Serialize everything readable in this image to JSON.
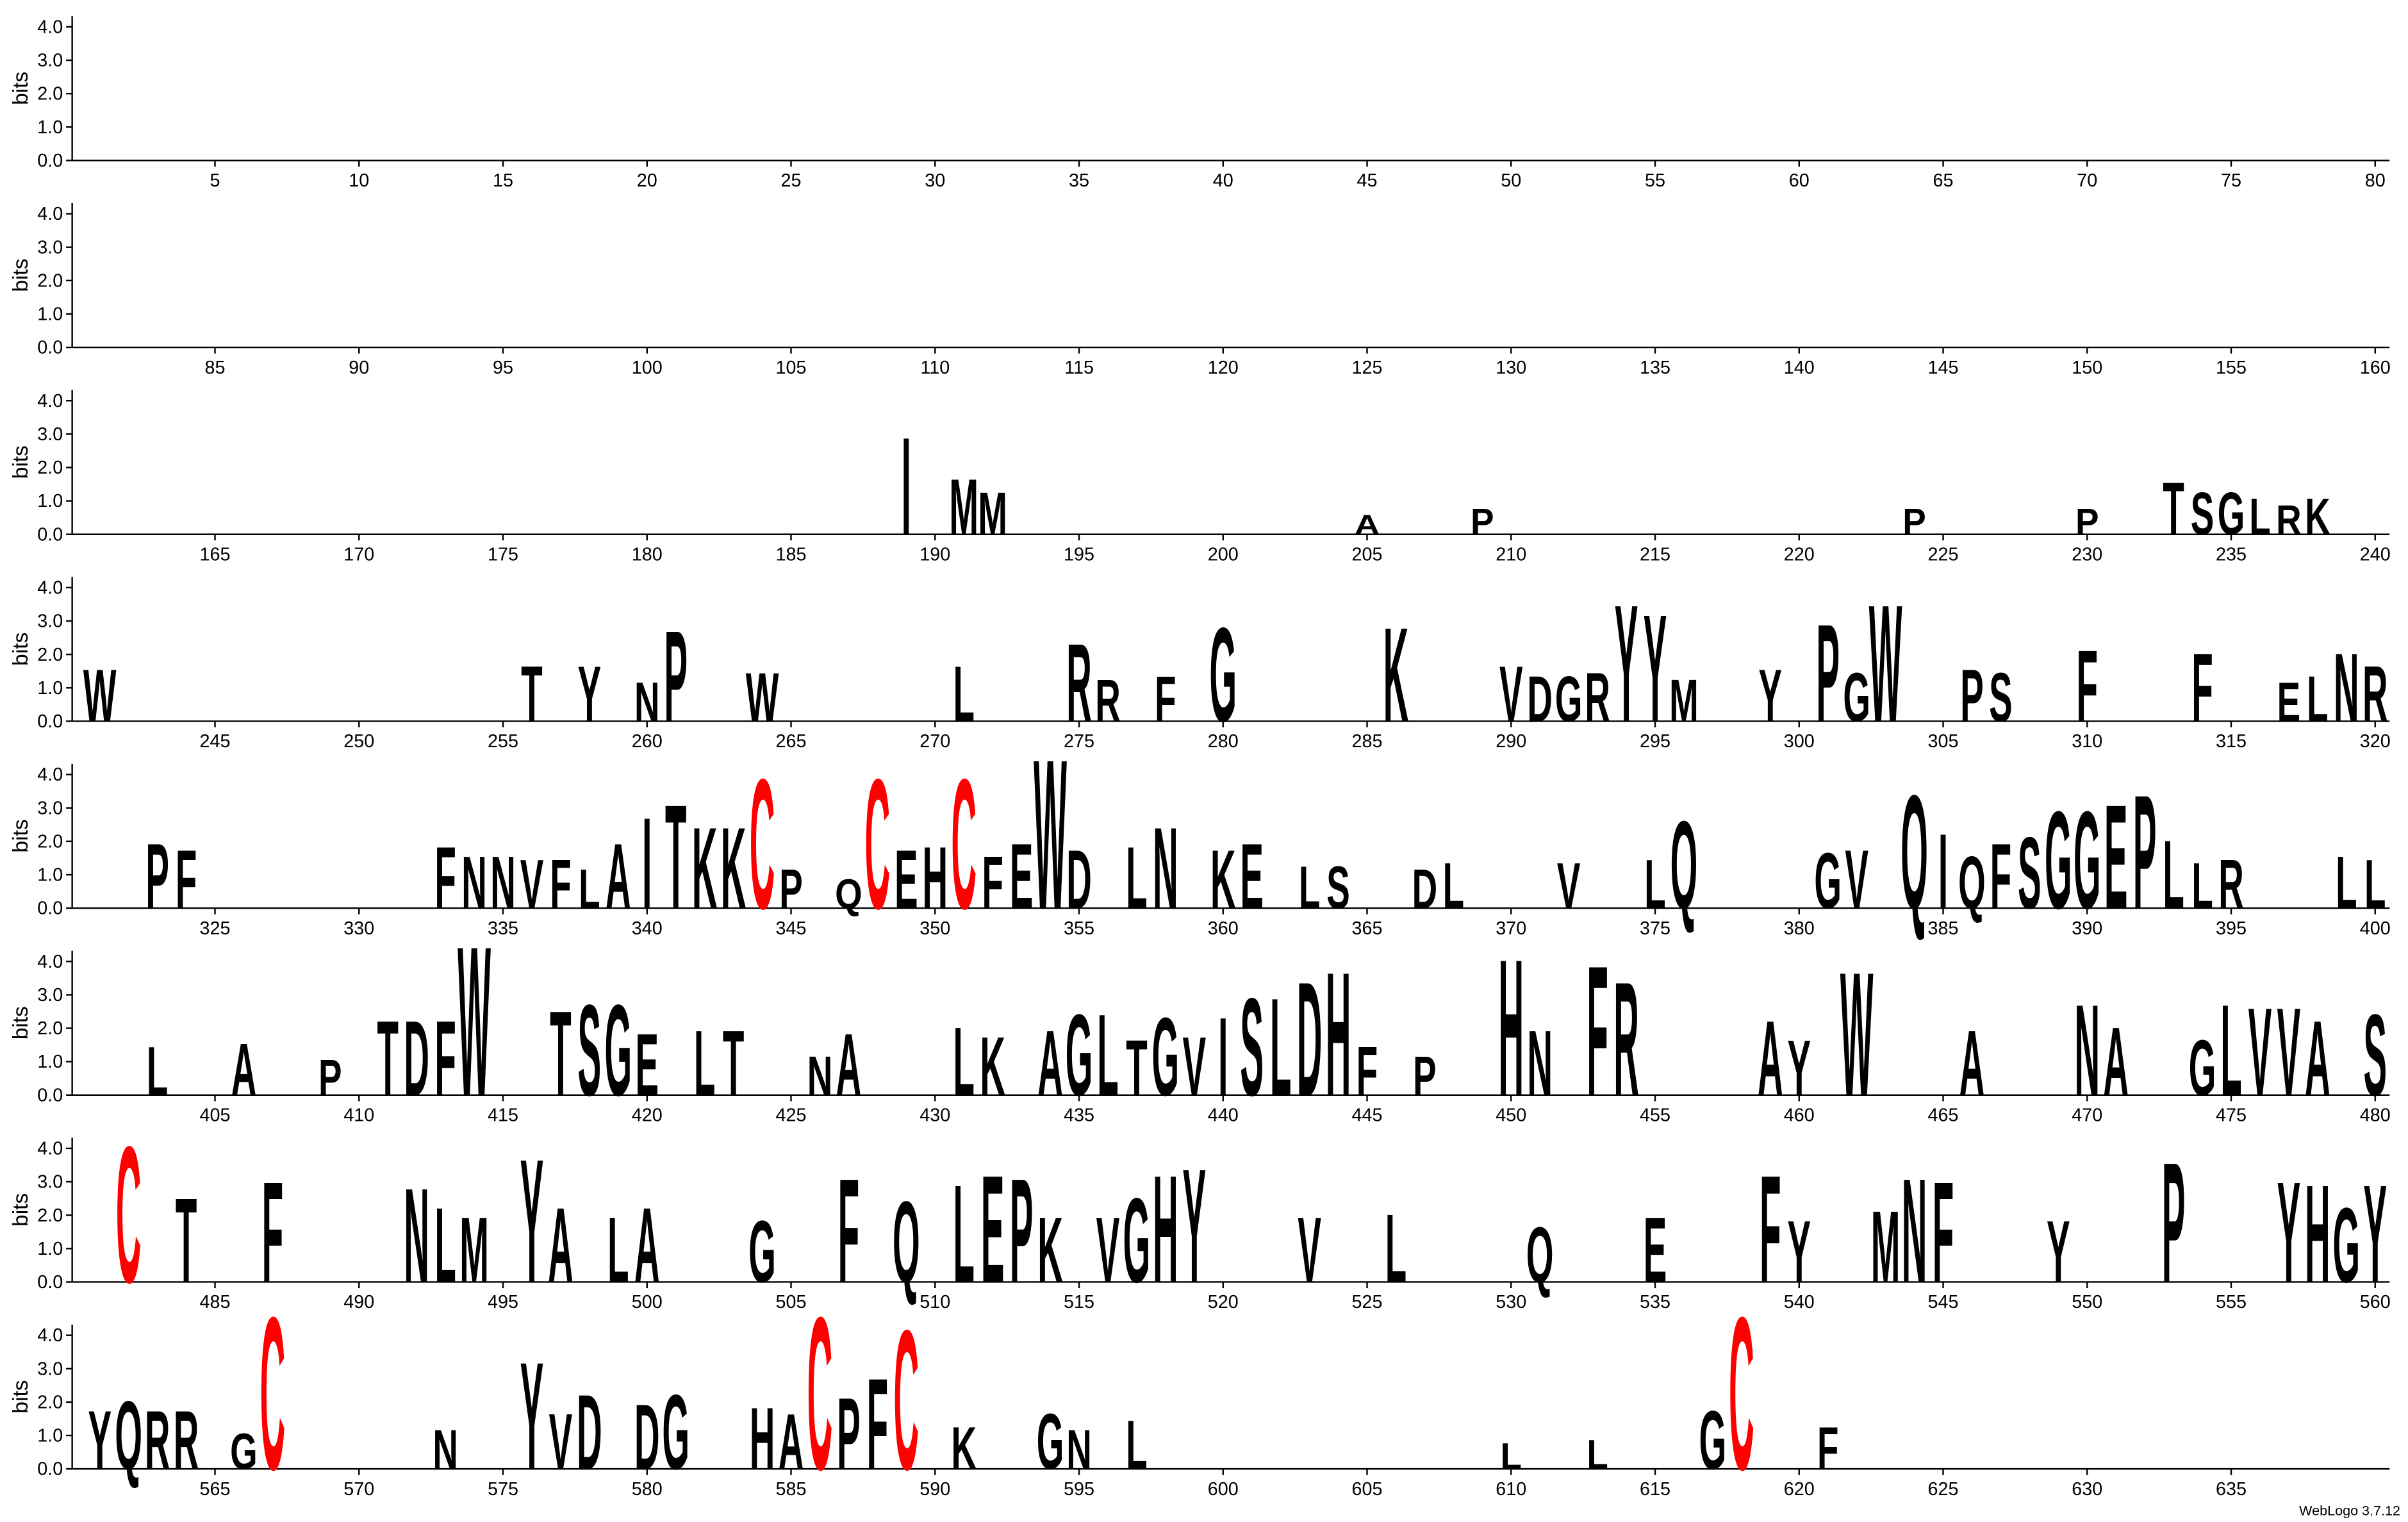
{
  "footer": "WebLogo 3.7.12",
  "letter_colors": {
    "C": "#ff0000",
    "default": "#000000"
  },
  "chart_data": [
    {
      "type": "logo",
      "ylabel": "bits",
      "xlim": [
        0.5,
        80.5
      ],
      "ylim": [
        0,
        4.32
      ],
      "xticks": [
        5,
        10,
        15,
        20,
        25,
        30,
        35,
        40,
        45,
        50,
        55,
        60,
        65,
        70,
        75,
        80
      ],
      "yticks": [
        {
          "value": 0,
          "label": "0.0"
        },
        {
          "value": 1,
          "label": "1.0"
        },
        {
          "value": 2,
          "label": "2.0"
        },
        {
          "value": 3,
          "label": "3.0"
        },
        {
          "value": 4,
          "label": "4.0"
        }
      ],
      "x": [],
      "letters": [],
      "values": []
    },
    {
      "type": "logo",
      "ylabel": "bits",
      "xlim": [
        80.5,
        160.5
      ],
      "ylim": [
        0,
        4.32
      ],
      "xticks": [
        85,
        90,
        95,
        100,
        105,
        110,
        115,
        120,
        125,
        130,
        135,
        140,
        145,
        150,
        155,
        160
      ],
      "yticks": [
        {
          "value": 0,
          "label": "0.0"
        },
        {
          "value": 1,
          "label": "1.0"
        },
        {
          "value": 2,
          "label": "2.0"
        },
        {
          "value": 3,
          "label": "3.0"
        },
        {
          "value": 4,
          "label": "4.0"
        }
      ],
      "x": [],
      "letters": [],
      "values": []
    },
    {
      "type": "logo",
      "ylabel": "bits",
      "xlim": [
        160.5,
        240.5
      ],
      "ylim": [
        0,
        4.32
      ],
      "xticks": [
        165,
        170,
        175,
        180,
        185,
        190,
        195,
        200,
        205,
        210,
        215,
        220,
        225,
        230,
        235,
        240
      ],
      "yticks": [
        {
          "value": 0,
          "label": "0.0"
        },
        {
          "value": 1,
          "label": "1.0"
        },
        {
          "value": 2,
          "label": "2.0"
        },
        {
          "value": 3,
          "label": "3.0"
        },
        {
          "value": 4,
          "label": "4.0"
        }
      ],
      "x": [
        189,
        191,
        192,
        205,
        209,
        224,
        230,
        233,
        234,
        235,
        236,
        237,
        238
      ],
      "letters": [
        "I",
        "M",
        "M",
        "A",
        "P",
        "P",
        "P",
        "T",
        "S",
        "G",
        "L",
        "R",
        "K"
      ],
      "values": [
        3.0,
        1.7,
        1.3,
        0.6,
        0.8,
        0.8,
        0.8,
        1.6,
        1.3,
        1.3,
        1.1,
        0.9,
        1.1
      ]
    },
    {
      "type": "logo",
      "ylabel": "bits",
      "xlim": [
        240.5,
        320.5
      ],
      "ylim": [
        0,
        4.32
      ],
      "xticks": [
        245,
        250,
        255,
        260,
        265,
        270,
        275,
        280,
        285,
        290,
        295,
        300,
        305,
        310,
        315,
        320
      ],
      "yticks": [
        {
          "value": 0,
          "label": "0.0"
        },
        {
          "value": 1,
          "label": "1.0"
        },
        {
          "value": 2,
          "label": "2.0"
        },
        {
          "value": 3,
          "label": "3.0"
        },
        {
          "value": 4,
          "label": "4.0"
        }
      ],
      "x": [
        241,
        256,
        258,
        260,
        261,
        264,
        271,
        275,
        276,
        278,
        280,
        286,
        290,
        291,
        292,
        293,
        294,
        295,
        296,
        299,
        301,
        302,
        303,
        306,
        307,
        310,
        314,
        317,
        318,
        319,
        320
      ],
      "letters": [
        "W",
        "T",
        "Y",
        "N",
        "P",
        "W",
        "L",
        "R",
        "R",
        "F",
        "G",
        "K",
        "V",
        "D",
        "G",
        "R",
        "Y",
        "Y",
        "M",
        "Y",
        "P",
        "G",
        "W",
        "P",
        "S",
        "F",
        "F",
        "E",
        "L",
        "N",
        "R"
      ],
      "values": [
        1.6,
        1.7,
        1.7,
        1.2,
        2.8,
        1.5,
        1.7,
        2.4,
        1.3,
        1.4,
        2.9,
        2.9,
        1.7,
        1.4,
        1.4,
        1.5,
        3.6,
        3.3,
        1.3,
        1.6,
        3.0,
        1.5,
        3.6,
        1.6,
        1.5,
        2.2,
        2.1,
        1.2,
        1.4,
        2.1,
        1.7
      ]
    },
    {
      "type": "logo",
      "ylabel": "bits",
      "xlim": [
        320.5,
        400.5
      ],
      "ylim": [
        0,
        4.32
      ],
      "xticks": [
        325,
        330,
        335,
        340,
        345,
        350,
        355,
        360,
        365,
        370,
        375,
        380,
        385,
        390,
        395,
        400
      ],
      "yticks": [
        {
          "value": 0,
          "label": "0.0"
        },
        {
          "value": 1,
          "label": "1.0"
        },
        {
          "value": 2,
          "label": "2.0"
        },
        {
          "value": 3,
          "label": "3.0"
        },
        {
          "value": 4,
          "label": "4.0"
        }
      ],
      "x": [
        323,
        324,
        333,
        334,
        335,
        336,
        337,
        338,
        339,
        340,
        341,
        342,
        343,
        344,
        345,
        347,
        348,
        349,
        350,
        351,
        352,
        353,
        354,
        355,
        357,
        358,
        360,
        361,
        363,
        364,
        367,
        368,
        372,
        375,
        376,
        381,
        382,
        384,
        385,
        386,
        387,
        388,
        389,
        390,
        391,
        392,
        393,
        394,
        395,
        399,
        400
      ],
      "letters": [
        "P",
        "F",
        "F",
        "N",
        "N",
        "V",
        "F",
        "L",
        "A",
        "I",
        "T",
        "K",
        "K",
        "C",
        "P",
        "Q",
        "C",
        "E",
        "H",
        "C",
        "F",
        "E",
        "W",
        "D",
        "L",
        "N",
        "K",
        "E",
        "L",
        "S",
        "D",
        "L",
        "V",
        "L",
        "Q",
        "G",
        "V",
        "Q",
        "I",
        "Q",
        "F",
        "S",
        "G",
        "G",
        "E",
        "P",
        "L",
        "L",
        "R",
        "L",
        "L"
      ],
      "values": [
        2.0,
        1.8,
        1.9,
        1.6,
        1.6,
        1.5,
        1.5,
        1.2,
        2.0,
        2.8,
        3.2,
        2.5,
        2.5,
        4.0,
        1.2,
        0.9,
        4.0,
        1.8,
        1.9,
        4.0,
        1.6,
        2.0,
        4.6,
        1.8,
        1.9,
        2.5,
        1.8,
        2.0,
        1.3,
        1.3,
        1.2,
        1.4,
        1.4,
        1.5,
        2.7,
        1.7,
        1.8,
        3.5,
        2.3,
        1.6,
        2.0,
        2.2,
        3.0,
        3.0,
        3.2,
        3.5,
        2.1,
        1.4,
        1.5,
        1.6,
        1.5
      ]
    },
    {
      "type": "logo",
      "ylabel": "bits",
      "xlim": [
        400.5,
        480.5
      ],
      "ylim": [
        0,
        4.32
      ],
      "xticks": [
        405,
        410,
        415,
        420,
        425,
        430,
        435,
        440,
        445,
        450,
        455,
        460,
        465,
        470,
        475,
        480
      ],
      "yticks": [
        {
          "value": 0,
          "label": "0.0"
        },
        {
          "value": 1,
          "label": "1.0"
        },
        {
          "value": 2,
          "label": "2.0"
        },
        {
          "value": 3,
          "label": "3.0"
        },
        {
          "value": 4,
          "label": "4.0"
        }
      ],
      "x": [
        403,
        406,
        409,
        411,
        412,
        413,
        414,
        417,
        418,
        419,
        420,
        422,
        423,
        426,
        427,
        431,
        432,
        434,
        435,
        436,
        437,
        438,
        439,
        440,
        441,
        442,
        443,
        444,
        445,
        447,
        450,
        451,
        453,
        454,
        459,
        460,
        462,
        466,
        470,
        471,
        474,
        475,
        476,
        477,
        478,
        480
      ],
      "letters": [
        "L",
        "A",
        "P",
        "T",
        "D",
        "F",
        "W",
        "T",
        "S",
        "G",
        "E",
        "L",
        "T",
        "N",
        "A",
        "L",
        "K",
        "A",
        "G",
        "L",
        "T",
        "G",
        "V",
        "I",
        "S",
        "L",
        "D",
        "H",
        "F",
        "P",
        "H",
        "N",
        "F",
        "R",
        "A",
        "Y",
        "W",
        "A",
        "N",
        "A",
        "G",
        "L",
        "V",
        "V",
        "A",
        "S"
      ],
      "values": [
        1.5,
        1.6,
        1.1,
        2.3,
        2.3,
        2.3,
        4.6,
        2.6,
        2.8,
        2.8,
        1.9,
        2.0,
        2.0,
        1.2,
        1.9,
        2.1,
        1.8,
        2.0,
        2.5,
        2.5,
        1.7,
        2.4,
        1.8,
        2.4,
        3.0,
        3.0,
        3.5,
        3.8,
        1.5,
        1.2,
        4.2,
        2.0,
        4.0,
        3.5,
        2.3,
        1.7,
        3.8,
        2.0,
        2.8,
        2.1,
        1.7,
        2.8,
        2.7,
        2.7,
        2.3,
        2.5
      ]
    },
    {
      "type": "logo",
      "ylabel": "bits",
      "xlim": [
        480.5,
        560.5
      ],
      "ylim": [
        0,
        4.32
      ],
      "xticks": [
        485,
        490,
        495,
        500,
        505,
        510,
        515,
        520,
        525,
        530,
        535,
        540,
        545,
        550,
        555,
        560
      ],
      "yticks": [
        {
          "value": 0,
          "label": "0.0"
        },
        {
          "value": 1,
          "label": "1.0"
        },
        {
          "value": 2,
          "label": "2.0"
        },
        {
          "value": 3,
          "label": "3.0"
        },
        {
          "value": 4,
          "label": "4.0"
        }
      ],
      "x": [
        482,
        484,
        487,
        492,
        493,
        494,
        496,
        497,
        499,
        500,
        504,
        507,
        509,
        511,
        512,
        513,
        514,
        516,
        517,
        518,
        519,
        523,
        526,
        531,
        535,
        539,
        540,
        543,
        544,
        545,
        549,
        553,
        557,
        558,
        559,
        560
      ],
      "letters": [
        "C",
        "T",
        "F",
        "N",
        "L",
        "M",
        "Y",
        "A",
        "L",
        "A",
        "G",
        "F",
        "Q",
        "L",
        "E",
        "P",
        "K",
        "V",
        "G",
        "H",
        "Y",
        "V",
        "L",
        "Q",
        "E",
        "F",
        "Y",
        "M",
        "N",
        "F",
        "Y",
        "P",
        "Y",
        "H",
        "G",
        "Y"
      ],
      "values": [
        4.2,
        2.6,
        3.1,
        2.9,
        2.3,
        2.0,
        3.8,
        2.3,
        2.0,
        2.3,
        1.9,
        3.2,
        2.5,
        3.0,
        3.3,
        3.2,
        2.0,
        2.0,
        2.6,
        3.3,
        3.5,
        2.0,
        2.1,
        1.7,
        2.0,
        3.3,
        1.9,
        2.2,
        3.2,
        3.1,
        1.9,
        3.7,
        3.1,
        3.0,
        2.3,
        3.0
      ]
    },
    {
      "type": "logo",
      "ylabel": "bits",
      "xlim": [
        560.5,
        640.5
      ],
      "ylim": [
        0,
        4.32
      ],
      "xticks": [
        565,
        570,
        575,
        580,
        585,
        590,
        595,
        600,
        605,
        610,
        615,
        620,
        625,
        630,
        635
      ],
      "yticks": [
        {
          "value": 0,
          "label": "0.0"
        },
        {
          "value": 1,
          "label": "1.0"
        },
        {
          "value": 2,
          "label": "2.0"
        },
        {
          "value": 3,
          "label": "3.0"
        },
        {
          "value": 4,
          "label": "4.0"
        }
      ],
      "x": [
        561,
        562,
        563,
        564,
        566,
        567,
        573,
        576,
        577,
        578,
        580,
        581,
        584,
        585,
        586,
        587,
        588,
        589,
        591,
        594,
        595,
        597,
        610,
        613,
        617,
        618,
        621
      ],
      "letters": [
        "Y",
        "Q",
        "R",
        "R",
        "G",
        "C",
        "N",
        "Y",
        "V",
        "D",
        "D",
        "G",
        "H",
        "A",
        "C",
        "P",
        "F",
        "C",
        "K",
        "G",
        "N",
        "L",
        "L",
        "L",
        "G",
        "C",
        "F"
      ],
      "values": [
        1.8,
        2.1,
        1.8,
        1.8,
        1.1,
        4.7,
        1.2,
        3.3,
        1.7,
        2.3,
        2.0,
        2.3,
        1.9,
        1.7,
        4.7,
        2.2,
        2.8,
        4.3,
        1.3,
        1.7,
        1.2,
        1.5,
        0.8,
        0.9,
        1.8,
        4.7,
        1.3
      ]
    }
  ]
}
